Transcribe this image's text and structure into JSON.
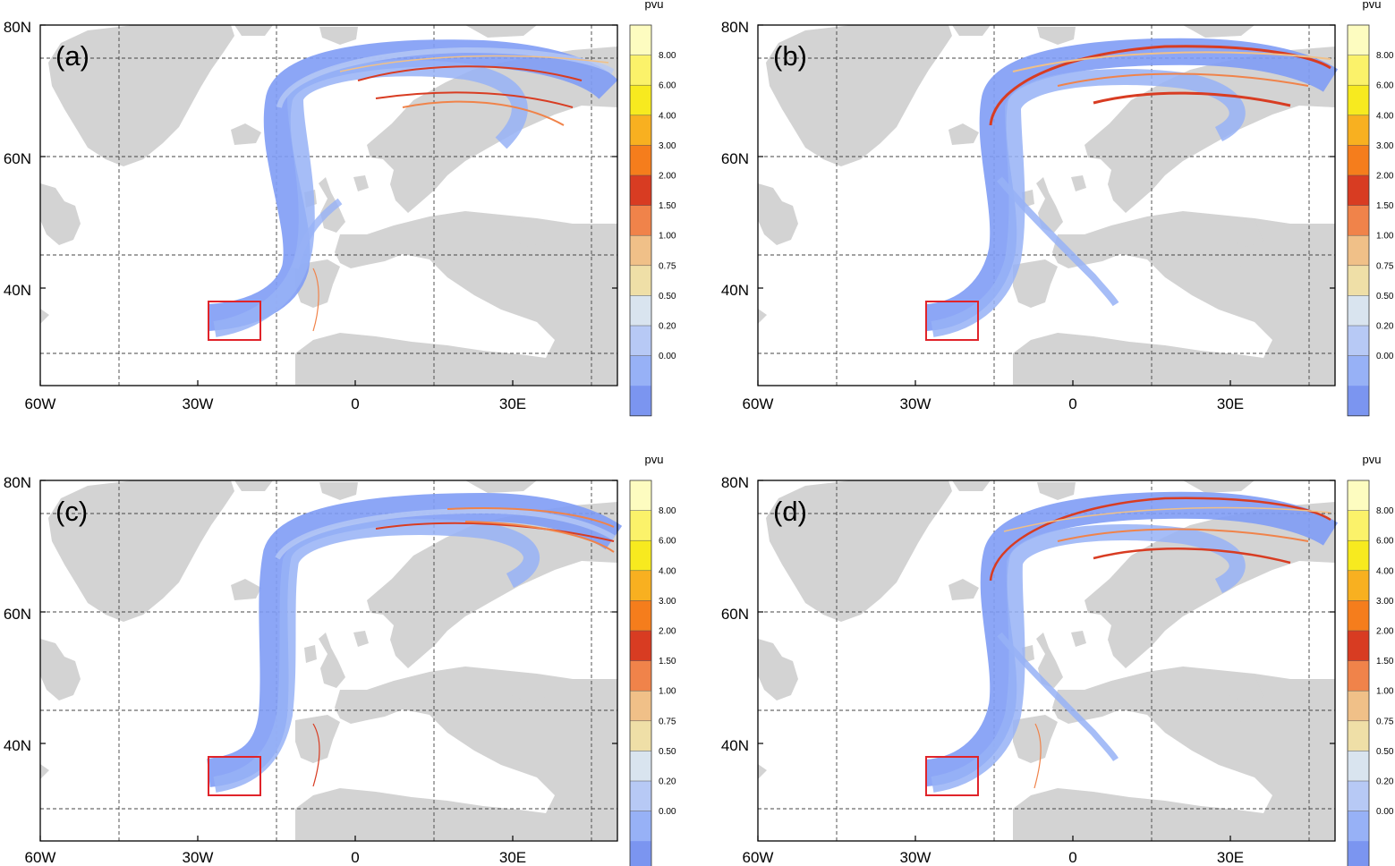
{
  "figure": {
    "panels": [
      {
        "label": "(a)"
      },
      {
        "label": "(b)"
      },
      {
        "label": "(c)"
      },
      {
        "label": "(d)"
      }
    ],
    "lat_labels": [
      "80N",
      "60N",
      "40N"
    ],
    "lon_labels": [
      "60W",
      "30W",
      "0",
      "30E"
    ],
    "colorbar": {
      "unit": "pvu",
      "levels": [
        "8.00",
        "6.00",
        "4.00",
        "3.00",
        "2.00",
        "1.50",
        "1.00",
        "0.75",
        "0.50",
        "0.20",
        "0.00"
      ],
      "colors": [
        "#fdfcc0",
        "#fbf26a",
        "#f7ea1f",
        "#f8b020",
        "#f57d1c",
        "#d83c22",
        "#f0834a",
        "#f0c088",
        "#efdfa7",
        "#d9e4ef",
        "#b7c9f5",
        "#97b1f6",
        "#7b95f0"
      ]
    },
    "map_colors": {
      "land": "#d3d3d3",
      "ocean": "#ffffff",
      "box": "#e0242a",
      "trajectory_low": "#7f9cf5",
      "trajectory_high": "#d83c22"
    }
  }
}
